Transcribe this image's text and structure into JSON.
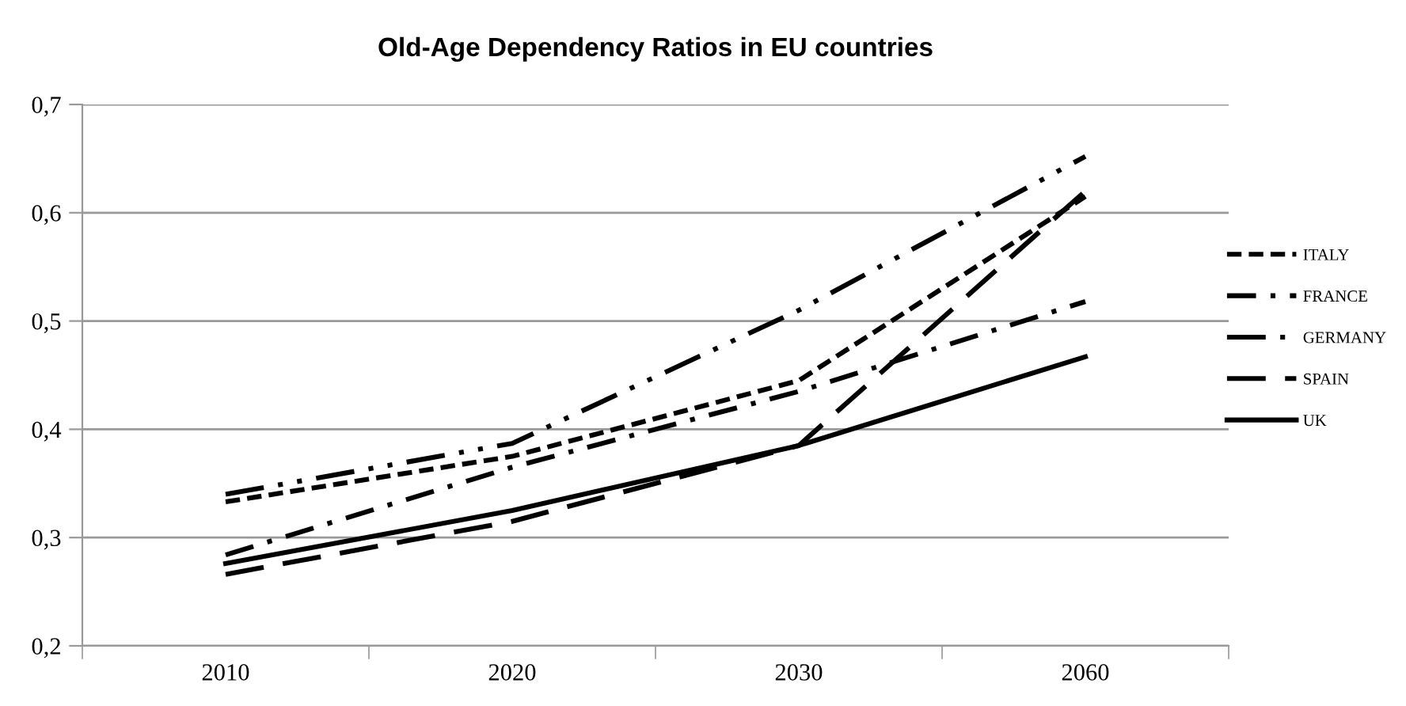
{
  "chart_data": {
    "type": "line",
    "title": "Old-Age Dependency Ratios in EU countries",
    "categories": [
      "2010",
      "2020",
      "2030",
      "2060"
    ],
    "series": [
      {
        "name": "ITALY",
        "color": "#000000",
        "line_style": "dash",
        "values": [
          0.333,
          0.375,
          0.445,
          0.615
        ]
      },
      {
        "name": "FRANCE",
        "color": "#000000",
        "line_style": "dash_dot",
        "values": [
          0.284,
          0.365,
          0.435,
          0.518
        ]
      },
      {
        "name": "GERMANY",
        "color": "#000000",
        "line_style": "long_dash_dot_dot",
        "values": [
          0.34,
          0.387,
          0.51,
          0.652
        ]
      },
      {
        "name": "SPAIN",
        "color": "#000000",
        "line_style": "long_dash",
        "values": [
          0.266,
          0.315,
          0.385,
          0.62
        ]
      },
      {
        "name": "UK",
        "color": "#000000",
        "line_style": "solid",
        "values": [
          0.276,
          0.325,
          0.385,
          0.467
        ]
      }
    ],
    "ylim": [
      0.2,
      0.7
    ],
    "yticks": [
      {
        "value": 0.2,
        "label": "0,2"
      },
      {
        "value": 0.3,
        "label": "0,3"
      },
      {
        "value": 0.4,
        "label": "0,4"
      },
      {
        "value": 0.5,
        "label": "0,5"
      },
      {
        "value": 0.6,
        "label": "0,6"
      },
      {
        "value": 0.7,
        "label": "0,7"
      }
    ],
    "grid": "y",
    "legend": "right",
    "marker": "none"
  }
}
